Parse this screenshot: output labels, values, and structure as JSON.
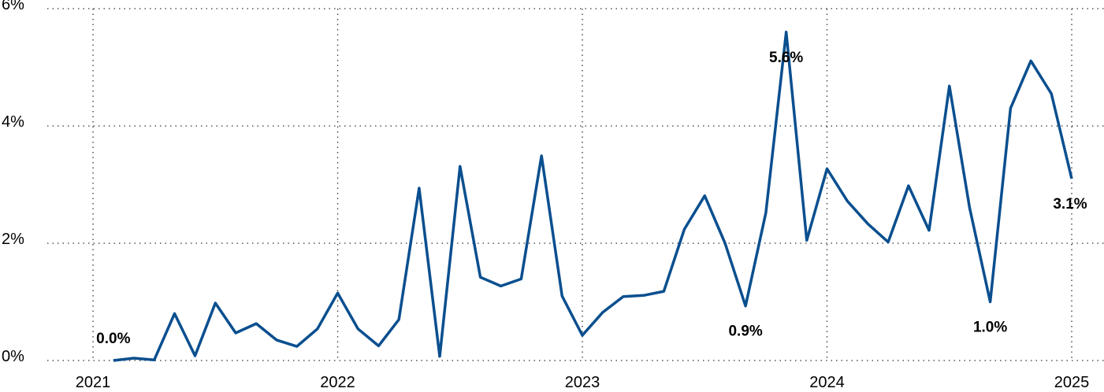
{
  "chart_data": {
    "type": "line",
    "x": [
      2021.083,
      2021.167,
      2021.25,
      2021.333,
      2021.417,
      2021.5,
      2021.583,
      2021.667,
      2021.75,
      2021.833,
      2021.917,
      2022.0,
      2022.083,
      2022.167,
      2022.25,
      2022.333,
      2022.417,
      2022.5,
      2022.583,
      2022.667,
      2022.75,
      2022.833,
      2022.917,
      2023.0,
      2023.083,
      2023.167,
      2023.25,
      2023.333,
      2023.417,
      2023.5,
      2023.583,
      2023.667,
      2023.75,
      2023.833,
      2023.917,
      2024.0,
      2024.083,
      2024.167,
      2024.25,
      2024.333,
      2024.417,
      2024.5,
      2024.583,
      2024.667,
      2024.75,
      2024.833,
      2024.917,
      2025.0
    ],
    "series": [
      {
        "color": "#0a4f8f",
        "values": [
          0,
          0.04,
          0.01,
          0.8,
          0.08,
          0.98,
          0.47,
          0.63,
          0.35,
          0.24,
          0.54,
          1.15,
          0.54,
          0.25,
          0.7,
          2.94,
          0.07,
          3.31,
          1.42,
          1.27,
          1.39,
          3.49,
          1.1,
          0.43,
          0.82,
          1.09,
          1.11,
          1.18,
          2.24,
          2.81,
          2.0,
          0.93,
          2.52,
          5.6,
          2.05,
          3.27,
          2.72,
          2.33,
          2.02,
          2.98,
          2.22,
          4.68,
          2.6,
          1.0,
          4.3,
          5.11,
          4.55,
          3.1
        ],
        "value_labels": [
          "0.0%",
          null,
          null,
          null,
          null,
          null,
          null,
          null,
          null,
          null,
          null,
          null,
          null,
          null,
          null,
          null,
          null,
          null,
          null,
          null,
          null,
          null,
          null,
          null,
          null,
          null,
          null,
          null,
          null,
          null,
          null,
          "0.9%",
          null,
          "5.6%",
          null,
          null,
          null,
          null,
          null,
          null,
          null,
          null,
          null,
          "1.0%",
          null,
          null,
          null,
          "3.1%"
        ]
      }
    ],
    "xlim": [
      2020.813,
      2025.132
    ],
    "xticks": [
      2021,
      2022,
      2023,
      2024,
      2025
    ],
    "ylim": [
      0,
      6
    ],
    "yticks": [
      {
        "value": 0,
        "label": "0%"
      },
      {
        "value": 2,
        "label": "2%"
      },
      {
        "value": 4,
        "label": "4%"
      },
      {
        "value": 6,
        "label": "6%"
      }
    ],
    "grid": true
  }
}
